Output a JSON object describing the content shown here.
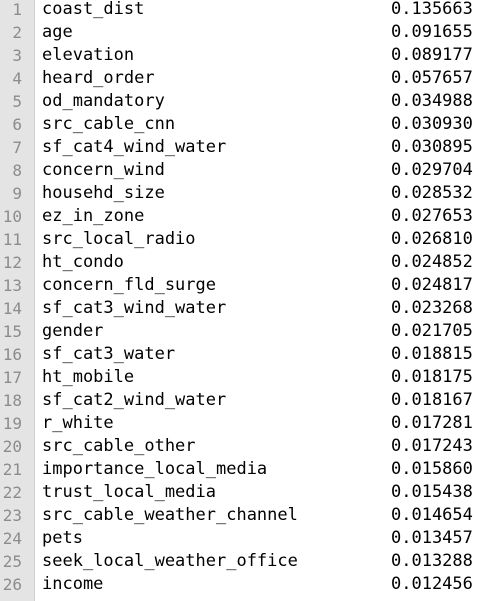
{
  "rows": [
    {
      "n": "1",
      "name": "coast_dist",
      "value": "0.135663"
    },
    {
      "n": "2",
      "name": "age",
      "value": "0.091655"
    },
    {
      "n": "3",
      "name": "elevation",
      "value": "0.089177"
    },
    {
      "n": "4",
      "name": "heard_order",
      "value": "0.057657"
    },
    {
      "n": "5",
      "name": "od_mandatory",
      "value": "0.034988"
    },
    {
      "n": "6",
      "name": "src_cable_cnn",
      "value": "0.030930"
    },
    {
      "n": "7",
      "name": "sf_cat4_wind_water",
      "value": "0.030895"
    },
    {
      "n": "8",
      "name": "concern_wind",
      "value": "0.029704"
    },
    {
      "n": "9",
      "name": "househd_size",
      "value": "0.028532"
    },
    {
      "n": "10",
      "name": "ez_in_zone",
      "value": "0.027653"
    },
    {
      "n": "11",
      "name": "src_local_radio",
      "value": "0.026810"
    },
    {
      "n": "12",
      "name": "ht_condo",
      "value": "0.024852"
    },
    {
      "n": "13",
      "name": "concern_fld_surge",
      "value": "0.024817"
    },
    {
      "n": "14",
      "name": "sf_cat3_wind_water",
      "value": "0.023268"
    },
    {
      "n": "15",
      "name": "gender",
      "value": "0.021705"
    },
    {
      "n": "16",
      "name": "sf_cat3_water",
      "value": "0.018815"
    },
    {
      "n": "17",
      "name": "ht_mobile",
      "value": "0.018175"
    },
    {
      "n": "18",
      "name": "sf_cat2_wind_water",
      "value": "0.018167"
    },
    {
      "n": "19",
      "name": "r_white",
      "value": "0.017281"
    },
    {
      "n": "20",
      "name": "src_cable_other",
      "value": "0.017243"
    },
    {
      "n": "21",
      "name": "importance_local_media",
      "value": "0.015860"
    },
    {
      "n": "22",
      "name": "trust_local_media",
      "value": "0.015438"
    },
    {
      "n": "23",
      "name": "src_cable_weather_channel",
      "value": "0.014654"
    },
    {
      "n": "24",
      "name": "pets",
      "value": "0.013457"
    },
    {
      "n": "25",
      "name": "seek_local_weather_office",
      "value": "0.013288"
    },
    {
      "n": "26",
      "name": "income",
      "value": "0.012456"
    }
  ]
}
